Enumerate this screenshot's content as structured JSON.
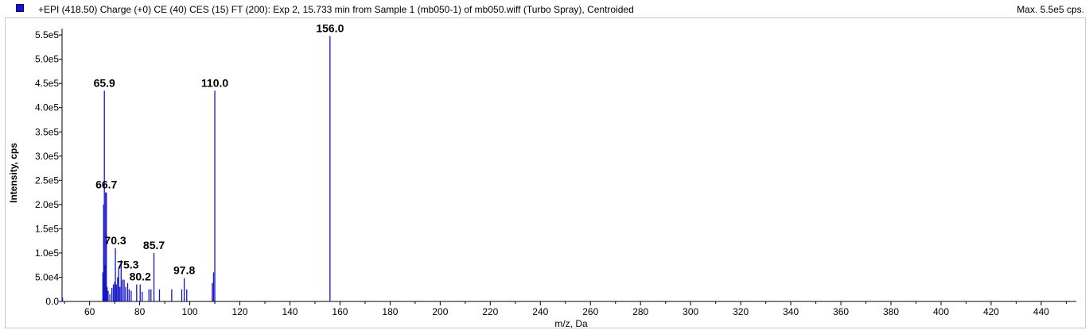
{
  "header": {
    "title": "+EPI (418.50) Charge (+0) CE (40) CES (15) FT (200): Exp 2, 15.733 min from Sample 1 (mb050-1) of mb050.wiff (Turbo Spray), Centroided",
    "max_label": "Max. 5.5e5 cps.",
    "series_color": "#1414c8"
  },
  "chart_data": {
    "type": "bar",
    "title": "+EPI (418.50) Charge (+0) CE (40) CES (15) FT (200): Exp 2, 15.733 min from Sample 1 (mb050-1) of mb050.wiff (Turbo Spray), Centroided",
    "xlabel": "m/z, Da",
    "ylabel": "Intensity, cps",
    "xlim": [
      49,
      454
    ],
    "ylim": [
      0,
      560000
    ],
    "x_ticks": [
      60,
      80,
      100,
      120,
      140,
      160,
      180,
      200,
      220,
      240,
      260,
      280,
      300,
      320,
      340,
      360,
      380,
      400,
      420,
      440
    ],
    "x_tick_labels": [
      "60",
      "80",
      "100",
      "120",
      "140",
      "160",
      "180",
      "200",
      "220",
      "240",
      "260",
      "280",
      "300",
      "320",
      "340",
      "360",
      "380",
      "400",
      "420",
      "440"
    ],
    "y_ticks": [
      0,
      50000,
      100000,
      150000,
      200000,
      250000,
      300000,
      350000,
      400000,
      450000,
      500000,
      550000
    ],
    "y_tick_labels": [
      "0.0",
      "5.0e4",
      "1.0e5",
      "1.5e5",
      "2.0e5",
      "2.5e5",
      "3.0e5",
      "3.5e5",
      "4.0e5",
      "4.5e5",
      "5.0e5",
      "5.5e5"
    ],
    "peaks": [
      {
        "mz": 49.2,
        "intensity": 8000
      },
      {
        "mz": 65.3,
        "intensity": 60000
      },
      {
        "mz": 65.6,
        "intensity": 200000
      },
      {
        "mz": 65.9,
        "intensity": 435000
      },
      {
        "mz": 66.2,
        "intensity": 75000
      },
      {
        "mz": 66.4,
        "intensity": 225000
      },
      {
        "mz": 66.7,
        "intensity": 225000
      },
      {
        "mz": 67.0,
        "intensity": 30000
      },
      {
        "mz": 67.4,
        "intensity": 22000
      },
      {
        "mz": 68.1,
        "intensity": 15000
      },
      {
        "mz": 68.9,
        "intensity": 28000
      },
      {
        "mz": 69.5,
        "intensity": 35000
      },
      {
        "mz": 70.0,
        "intensity": 40000
      },
      {
        "mz": 70.3,
        "intensity": 110000
      },
      {
        "mz": 70.7,
        "intensity": 35000
      },
      {
        "mz": 71.2,
        "intensity": 50000
      },
      {
        "mz": 71.6,
        "intensity": 70000
      },
      {
        "mz": 72.1,
        "intensity": 30000
      },
      {
        "mz": 72.6,
        "intensity": 85000
      },
      {
        "mz": 73.2,
        "intensity": 45000
      },
      {
        "mz": 73.8,
        "intensity": 45000
      },
      {
        "mz": 74.4,
        "intensity": 30000
      },
      {
        "mz": 75.2,
        "intensity": 38000
      },
      {
        "mz": 75.8,
        "intensity": 25000
      },
      {
        "mz": 76.6,
        "intensity": 22000
      },
      {
        "mz": 78.8,
        "intensity": 35000
      },
      {
        "mz": 80.2,
        "intensity": 35000
      },
      {
        "mz": 81.0,
        "intensity": 20000
      },
      {
        "mz": 83.7,
        "intensity": 25000
      },
      {
        "mz": 84.5,
        "intensity": 25000
      },
      {
        "mz": 85.7,
        "intensity": 100000
      },
      {
        "mz": 87.9,
        "intensity": 25000
      },
      {
        "mz": 92.8,
        "intensity": 25000
      },
      {
        "mz": 96.8,
        "intensity": 25000
      },
      {
        "mz": 97.8,
        "intensity": 48000
      },
      {
        "mz": 98.8,
        "intensity": 25000
      },
      {
        "mz": 109.0,
        "intensity": 38000
      },
      {
        "mz": 109.5,
        "intensity": 60000
      },
      {
        "mz": 110.0,
        "intensity": 435000
      },
      {
        "mz": 156.0,
        "intensity": 548000
      }
    ],
    "peak_labels": [
      {
        "mz": 65.9,
        "intensity": 435000,
        "text": "65.9"
      },
      {
        "mz": 66.7,
        "intensity": 225000,
        "text": "66.7"
      },
      {
        "mz": 70.3,
        "intensity": 110000,
        "text": "70.3"
      },
      {
        "mz": 75.3,
        "intensity": 60000,
        "text": "75.3"
      },
      {
        "mz": 80.2,
        "intensity": 35000,
        "text": "80.2"
      },
      {
        "mz": 85.7,
        "intensity": 100000,
        "text": "85.7"
      },
      {
        "mz": 97.8,
        "intensity": 48000,
        "text": "97.8"
      },
      {
        "mz": 110.0,
        "intensity": 435000,
        "text": "110.0"
      },
      {
        "mz": 156.0,
        "intensity": 548000,
        "text": "156.0"
      }
    ]
  }
}
